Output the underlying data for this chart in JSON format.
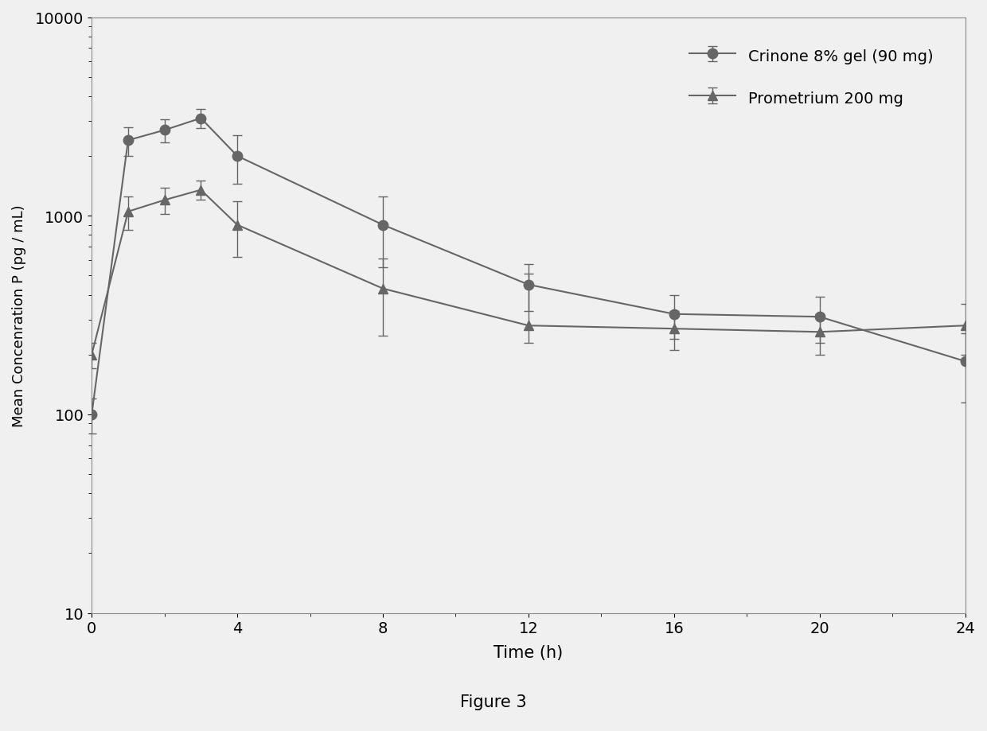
{
  "crinone_x": [
    0,
    1,
    2,
    3,
    4,
    8,
    12,
    16,
    20,
    24
  ],
  "crinone_y": [
    100,
    2400,
    2700,
    3100,
    2000,
    900,
    450,
    320,
    310,
    185
  ],
  "crinone_yerr_low": [
    20,
    400,
    350,
    350,
    550,
    350,
    120,
    80,
    80,
    70
  ],
  "crinone_yerr_high": [
    20,
    400,
    350,
    350,
    550,
    350,
    120,
    80,
    80,
    70
  ],
  "prometrium_x": [
    0,
    1,
    2,
    3,
    4,
    8,
    12,
    16,
    20,
    24
  ],
  "prometrium_y": [
    200,
    1050,
    1200,
    1350,
    900,
    430,
    280,
    270,
    260,
    280
  ],
  "prometrium_yerr_low": [
    30,
    200,
    180,
    150,
    280,
    180,
    50,
    60,
    60,
    80
  ],
  "prometrium_yerr_high": [
    30,
    200,
    180,
    150,
    280,
    180,
    230,
    60,
    60,
    80
  ],
  "color": "#666666",
  "xlabel": "Time (h)",
  "ylabel": "Mean Concenration P (pg / mL)",
  "legend1": "Crinone 8% gel (90 mg)",
  "legend2": "Prometrium 200 mg",
  "figure_caption": "Figure 3",
  "ylim_bottom": 10,
  "ylim_top": 10000,
  "xlim_left": 0,
  "xlim_right": 24,
  "xticks": [
    0,
    4,
    8,
    12,
    16,
    20,
    24
  ],
  "background_color": "#f0f0f0",
  "plot_bg_color": "#f0f0f0"
}
